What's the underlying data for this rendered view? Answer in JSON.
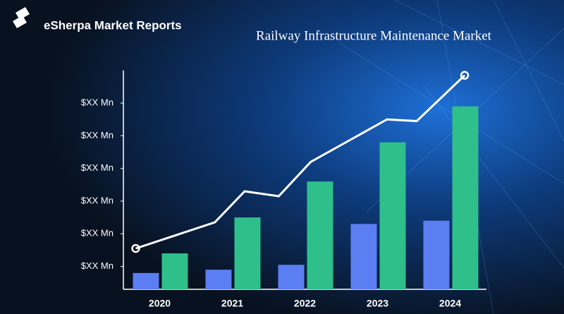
{
  "brand": "eSherpa Market Reports",
  "chart_data": {
    "type": "bar",
    "title": "Railway Infrastructure Maintenance Market",
    "categories": [
      "2020",
      "2021",
      "2022",
      "2023",
      "2024"
    ],
    "series": [
      {
        "color": "#5b7ef2",
        "values": [
          0.8,
          0.9,
          1.05,
          2.3,
          2.4
        ]
      },
      {
        "color": "#2ebf8b",
        "values": [
          1.4,
          2.5,
          3.6,
          4.8,
          5.9
        ]
      }
    ],
    "trend": {
      "color": "#ffffff",
      "x": [
        -0.33,
        0.76,
        1.17,
        1.64,
        2.08,
        3.13,
        3.54,
        4.2
      ],
      "values": [
        1.55,
        2.35,
        3.3,
        3.15,
        4.2,
        5.5,
        5.45,
        6.85
      ]
    },
    "ylim": [
      0.3,
      7
    ],
    "yticks": [
      {
        "value": 1,
        "label": "$XX Mn"
      },
      {
        "value": 2,
        "label": "$XX Mn"
      },
      {
        "value": 3,
        "label": "$XX Mn"
      },
      {
        "value": 4,
        "label": "$XX Mn"
      },
      {
        "value": 5,
        "label": "$XX Mn"
      },
      {
        "value": 6,
        "label": "$XX Mn"
      }
    ]
  }
}
